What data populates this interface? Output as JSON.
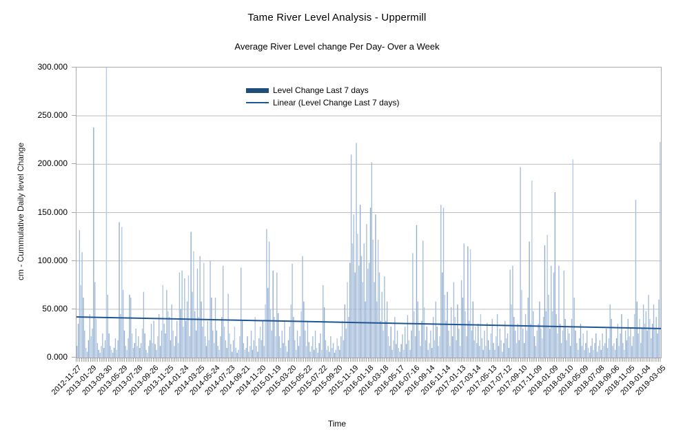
{
  "chart_data": {
    "type": "bar",
    "title": "Tame River Level Analysis - Uppermill",
    "subtitle": "Average River Level change Per Day-  Over a Week",
    "xlabel": "Time",
    "ylabel": "cm - Cummulative Daily level Change",
    "ylim": [
      0,
      300
    ],
    "y_tick_step": 50,
    "y_tick_labels": [
      "0.000",
      "50.000",
      "100.000",
      "150.000",
      "200.000",
      "250.000",
      "300.000"
    ],
    "x_tick_labels": [
      "2012-11-27",
      "2013-01-29",
      "2013-03-30",
      "2013-05-29",
      "2013-07-28",
      "2013-09-26",
      "2013-11-25",
      "2014-01-24",
      "2014-03-25",
      "2014-05-24",
      "2014-07-23",
      "2014-09-21",
      "2014-11-20",
      "2015-01-19",
      "2015-03-20",
      "2015-05-22",
      "2015-07-22",
      "2015-09-20",
      "2015-11-19",
      "2016-01-18",
      "2016-03-18",
      "2016-05-17",
      "2016-07-16",
      "2016-09-14",
      "2016-11-14",
      "2017-01-13",
      "2017-03-14",
      "2017-05-13",
      "2017-07-12",
      "2017-09-10",
      "2017-11-09",
      "2018-01-09",
      "2018-03-10",
      "2018-05-09",
      "2018-07-08",
      "2018-09-06",
      "2018-11-05",
      "2019-01-04",
      "2019-03-05"
    ],
    "x_range": [
      "2012-11-27",
      "2019-03-05"
    ],
    "grid": true,
    "legend_position": "inside-top-center",
    "series": [
      {
        "name": "Level Change Last 7 days",
        "color": "#A3BCDA",
        "values": [
          12,
          35,
          132,
          75,
          109,
          62,
          28,
          10,
          6,
          18,
          45,
          22,
          30,
          238,
          78,
          40,
          15,
          8,
          5,
          12,
          25,
          10,
          18,
          300,
          65,
          25,
          12,
          8,
          5,
          10,
          20,
          8,
          18,
          140,
          45,
          135,
          70,
          28,
          12,
          8,
          20,
          65,
          62,
          25,
          10,
          15,
          30,
          12,
          22,
          10,
          15,
          30,
          68,
          25,
          8,
          5,
          12,
          18,
          35,
          15,
          38,
          14,
          8,
          22,
          45,
          12,
          28,
          75,
          35,
          25,
          70,
          48,
          42,
          18,
          55,
          28,
          12,
          22,
          38,
          15,
          88,
          50,
          90,
          32,
          82,
          38,
          58,
          85,
          22,
          130,
          68,
          110,
          48,
          28,
          92,
          42,
          105,
          58,
          32,
          98,
          22,
          12,
          38,
          18,
          100,
          62,
          28,
          15,
          62,
          28,
          12,
          8,
          22,
          42,
          95,
          32,
          18,
          10,
          66,
          25,
          14,
          6,
          18,
          32,
          10,
          5,
          8,
          22,
          93,
          38,
          15,
          8,
          10,
          22,
          6,
          12,
          28,
          8,
          18,
          42,
          12,
          6,
          20,
          32,
          18,
          38,
          12,
          55,
          133,
          72,
          120,
          50,
          28,
          90,
          42,
          22,
          88,
          46,
          22,
          10,
          28,
          15,
          38,
          12,
          6,
          18,
          32,
          55,
          97,
          42,
          18,
          8,
          28,
          12,
          22,
          48,
          105,
          58,
          28,
          12,
          38,
          16,
          6,
          12,
          22,
          8,
          28,
          10,
          5,
          15,
          25,
          8,
          75,
          52,
          18,
          8,
          12,
          6,
          22,
          10,
          15,
          5,
          8,
          20,
          12,
          8,
          22,
          38,
          18,
          55,
          30,
          78,
          42,
          98,
          210,
          118,
          148,
          88,
          222,
          128,
          95,
          158,
          105,
          78,
          118,
          58,
          138,
          92,
          98,
          155,
          202,
          122,
          78,
          148,
          58,
          122,
          88,
          38,
          68,
          28,
          84,
          38,
          58,
          22,
          12,
          32,
          8,
          18,
          42,
          14,
          28,
          10,
          6,
          14,
          24,
          8,
          32,
          14,
          44,
          18,
          8,
          28,
          108,
          48,
          22,
          137,
          58,
          28,
          12,
          38,
          121,
          52,
          18,
          32,
          8,
          15,
          28,
          10,
          42,
          18,
          58,
          32,
          12,
          22,
          158,
          88,
          155,
          65,
          38,
          68,
          28,
          12,
          52,
          22,
          78,
          42,
          18,
          55,
          30,
          12,
          80,
          62,
          118,
          48,
          22,
          115,
          38,
          112,
          28,
          58,
          18,
          32,
          15,
          35,
          12,
          45,
          20,
          8,
          28,
          12,
          36,
          18,
          8,
          25,
          40,
          15,
          8,
          22,
          45,
          12,
          30,
          18,
          6,
          15,
          38,
          20,
          25,
          10,
          91,
          55,
          95,
          42,
          28,
          15,
          35,
          18,
          197,
          70,
          30,
          15,
          45,
          28,
          62,
          120,
          35,
          183,
          48,
          22,
          12,
          28,
          35,
          58,
          30,
          20,
          42,
          116,
          48,
          127,
          65,
          30,
          95,
          48,
          88,
          171,
          45,
          25,
          95,
          35,
          15,
          28,
          90,
          40,
          18,
          30,
          25,
          12,
          40,
          205,
          62,
          28,
          15,
          8,
          20,
          35,
          12,
          25,
          8,
          15,
          28,
          10,
          5,
          12,
          20,
          8,
          15,
          25,
          6,
          12,
          18,
          8,
          25,
          12,
          15,
          30,
          10,
          20,
          55,
          40,
          12,
          15,
          8,
          20,
          35,
          12,
          25,
          45,
          15,
          8,
          28,
          18,
          40,
          22,
          30,
          12,
          22,
          45,
          163,
          58,
          25,
          40,
          15,
          30,
          55,
          35,
          48,
          28,
          65,
          40,
          20,
          35,
          55,
          30,
          42,
          25,
          60,
          223
        ]
      }
    ],
    "trendline": {
      "name": "Linear (Level Change Last 7 days)",
      "color": "#1F5492",
      "start_value": 42,
      "end_value": 30
    },
    "colors": {
      "bar": "#A3BCDA",
      "bar_shade_dark": "#8FABCE",
      "bar_shade_light": "#B4C9E2",
      "legend_swatch": "#1F4E79",
      "gridline": "#BDBDBD",
      "axis_border": "#ABABAB",
      "tick": "#9E9E9E"
    }
  }
}
